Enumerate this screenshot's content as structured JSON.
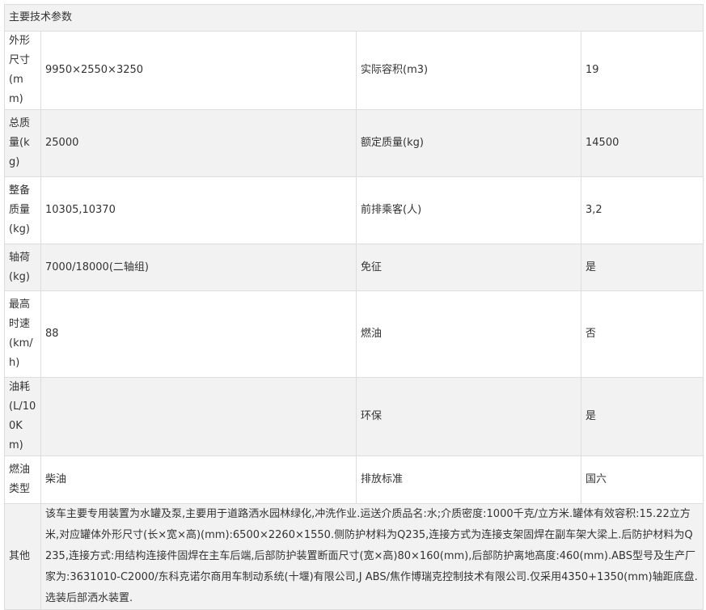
{
  "title": "主要技术参数",
  "rows": [
    {
      "l1": "外形尺寸(mm)",
      "v1": "9950×2550×3250",
      "l2": "实际容积(m3)",
      "v2": "19"
    },
    {
      "l1": "总质量(kg)",
      "v1": "25000",
      "l2": "额定质量(kg)",
      "v2": "14500"
    },
    {
      "l1": "整备质量(kg)",
      "v1": "10305,10370",
      "l2": "前排乘客(人)",
      "v2": "3,2"
    },
    {
      "l1": "轴荷(kg)",
      "v1": "7000/18000(二轴组)",
      "l2": "免征",
      "v2": "是"
    },
    {
      "l1": "最高时速(km/h)",
      "v1": "88",
      "l2": "燃油",
      "v2": "否"
    },
    {
      "l1": "油耗(L/100Km)",
      "v1": "",
      "l2": "环保",
      "v2": "是"
    },
    {
      "l1": "燃油类型",
      "v1": "柴油",
      "l2": "排放标准",
      "v2": "国六"
    }
  ],
  "other": {
    "label": "其他",
    "text": "该车主要专用装置为水罐及泵,主要用于道路洒水园林绿化,冲洗作业.运送介质品名:水;介质密度:1000千克/立方米.罐体有效容积:15.22立方米,对应罐体外形尺寸(长×宽×高)(mm):6500×2260×1550.侧防护材料为Q235,连接方式为连接支架固焊在副车架大梁上.后防护材料为Q235,连接方式:用结构连接件固焊在主车后端,后部防护装置断面尺寸(宽×高)80×160(mm),后部防护离地高度:460(mm).ABS型号及生产厂家为:3631010-C2000/东科克诺尔商用车制动系统(十堰)有限公司,J ABS/焦作博瑞克控制技术有限公司.仅采用4350+1350(mm)轴距底盘.选装后部洒水装置."
  }
}
